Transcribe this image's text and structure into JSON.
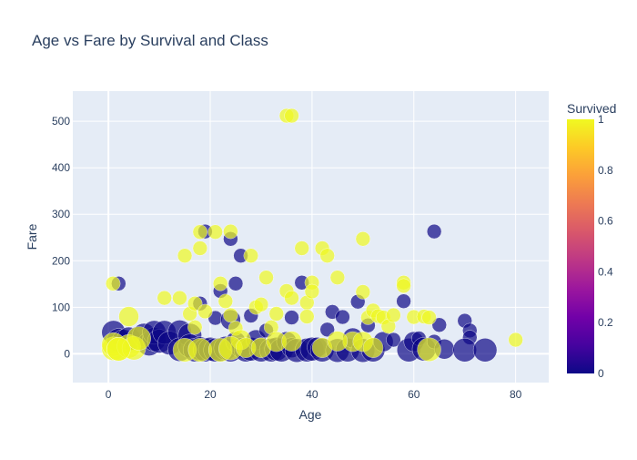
{
  "chart_data": {
    "type": "scatter",
    "title": "Age vs Fare by Survival and Class",
    "xlabel": "Age",
    "ylabel": "Fare",
    "xlim": [
      -7,
      86.5
    ],
    "ylim": [
      -62,
      565
    ],
    "x_ticks": [
      0,
      20,
      40,
      60,
      80
    ],
    "y_ticks": [
      0,
      100,
      200,
      300,
      400,
      500
    ],
    "grid": true,
    "plot_bgcolor": "#e5ecf6",
    "colorbar": {
      "title": "Survived",
      "range": [
        0,
        1
      ],
      "ticks": [
        "0",
        "0.2",
        "0.4",
        "0.6",
        "0.8",
        "1"
      ],
      "colorscale": [
        "#0d0887",
        "#46039f",
        "#7201a8",
        "#9c179e",
        "#bd3786",
        "#d8576b",
        "#ed7953",
        "#fb9f3a",
        "#fdca26",
        "#f0f921"
      ]
    },
    "marker_size_note": "marker size encodes passenger class (larger = 3rd class)",
    "series": [
      {
        "survived": 0,
        "color": "#0d0887",
        "points": [
          [
            1,
            46,
            3
          ],
          [
            2,
            29,
            3
          ],
          [
            2,
            151,
            1
          ],
          [
            3,
            27,
            3
          ],
          [
            4,
            32,
            3
          ],
          [
            6,
            34,
            3
          ],
          [
            7,
            40,
            3
          ],
          [
            8,
            21,
            3
          ],
          [
            9,
            31,
            3
          ],
          [
            9,
            46,
            3
          ],
          [
            10,
            27,
            3
          ],
          [
            11,
            46,
            3
          ],
          [
            12,
            23,
            3
          ],
          [
            14,
            47,
            3
          ],
          [
            14,
            9,
            3
          ],
          [
            16,
            40,
            3
          ],
          [
            16,
            17,
            3
          ],
          [
            17,
            8,
            3
          ],
          [
            18,
            108,
            1
          ],
          [
            18,
            11,
            3
          ],
          [
            19,
            263,
            1
          ],
          [
            19,
            8,
            3
          ],
          [
            20,
            10,
            3
          ],
          [
            21,
            77,
            1
          ],
          [
            21,
            8,
            3
          ],
          [
            22,
            135,
            1
          ],
          [
            22,
            9,
            3
          ],
          [
            23,
            12,
            3
          ],
          [
            24,
            247,
            1
          ],
          [
            24,
            8,
            3
          ],
          [
            24,
            73,
            2
          ],
          [
            25,
            151,
            1
          ],
          [
            25,
            26,
            2
          ],
          [
            26,
            211,
            1
          ],
          [
            26,
            13,
            2
          ],
          [
            27,
            8,
            3
          ],
          [
            28,
            82,
            1
          ],
          [
            28,
            10,
            3
          ],
          [
            29,
            30,
            2
          ],
          [
            30,
            8,
            3
          ],
          [
            31,
            50,
            1
          ],
          [
            32,
            8,
            3
          ],
          [
            33,
            10,
            3
          ],
          [
            34,
            8,
            3
          ],
          [
            35,
            26,
            2
          ],
          [
            36,
            13,
            2
          ],
          [
            36,
            78,
            1
          ],
          [
            37,
            7,
            3
          ],
          [
            38,
            153,
            1
          ],
          [
            39,
            8,
            3
          ],
          [
            40,
            10,
            3
          ],
          [
            41,
            14,
            2
          ],
          [
            42,
            8,
            3
          ],
          [
            43,
            52,
            1
          ],
          [
            44,
            90,
            1
          ],
          [
            45,
            7,
            3
          ],
          [
            46,
            79,
            1
          ],
          [
            47,
            8,
            3
          ],
          [
            48,
            34,
            2
          ],
          [
            49,
            112,
            1
          ],
          [
            50,
            7,
            3
          ],
          [
            51,
            61,
            1
          ],
          [
            52,
            8,
            3
          ],
          [
            54,
            26,
            2
          ],
          [
            56,
            30,
            1
          ],
          [
            58,
            113,
            1
          ],
          [
            59,
            8,
            3
          ],
          [
            60,
            26,
            2
          ],
          [
            61,
            33,
            1
          ],
          [
            62,
            10,
            3
          ],
          [
            64,
            263,
            1
          ],
          [
            64,
            26,
            1
          ],
          [
            65,
            62,
            1
          ],
          [
            66,
            10,
            2
          ],
          [
            70,
            71,
            1
          ],
          [
            71,
            50,
            1
          ],
          [
            71,
            35,
            1
          ],
          [
            70,
            8,
            3
          ],
          [
            74,
            8,
            3
          ]
        ]
      },
      {
        "survived": 1,
        "color": "#f0f921",
        "points": [
          [
            0.9,
            151,
            1
          ],
          [
            1,
            11,
            3
          ],
          [
            1,
            20,
            3
          ],
          [
            2,
            10,
            3
          ],
          [
            4,
            80,
            2
          ],
          [
            4,
            16,
            3
          ],
          [
            5,
            12,
            3
          ],
          [
            6,
            33,
            3
          ],
          [
            11,
            120,
            1
          ],
          [
            14,
            120,
            1
          ],
          [
            15,
            211,
            1
          ],
          [
            16,
            86,
            1
          ],
          [
            17,
            108,
            1
          ],
          [
            17,
            57,
            1
          ],
          [
            18,
            262,
            1
          ],
          [
            18,
            227,
            1
          ],
          [
            19,
            91,
            1
          ],
          [
            21,
            262,
            1
          ],
          [
            22,
            151,
            1
          ],
          [
            23,
            113,
            1
          ],
          [
            24,
            263,
            1
          ],
          [
            24,
            83,
            1
          ],
          [
            25,
            55,
            1
          ],
          [
            26,
            30,
            2
          ],
          [
            28,
            211,
            1
          ],
          [
            29,
            100,
            1
          ],
          [
            30,
            106,
            1
          ],
          [
            31,
            164,
            1
          ],
          [
            32,
            57,
            1
          ],
          [
            33,
            86,
            1
          ],
          [
            35,
            512,
            1
          ],
          [
            36,
            512,
            1
          ],
          [
            35,
            135,
            1
          ],
          [
            36,
            120,
            1
          ],
          [
            38,
            227,
            1
          ],
          [
            39,
            110,
            1
          ],
          [
            39,
            80,
            1
          ],
          [
            40,
            153,
            1
          ],
          [
            40,
            134,
            1
          ],
          [
            42,
            227,
            1
          ],
          [
            43,
            211,
            1
          ],
          [
            45,
            164,
            1
          ],
          [
            48,
            26,
            2
          ],
          [
            50,
            247,
            1
          ],
          [
            50,
            133,
            1
          ],
          [
            51,
            78,
            1
          ],
          [
            52,
            93,
            1
          ],
          [
            53,
            81,
            1
          ],
          [
            54,
            78,
            1
          ],
          [
            55,
            59,
            1
          ],
          [
            56,
            83,
            1
          ],
          [
            58,
            153,
            1
          ],
          [
            58,
            146,
            1
          ],
          [
            60,
            79,
            1
          ],
          [
            62,
            80,
            1
          ],
          [
            63,
            78,
            1
          ],
          [
            63,
            9,
            3
          ],
          [
            80,
            30,
            1
          ],
          [
            2,
            10,
            3
          ],
          [
            15,
            8,
            3
          ],
          [
            18,
            8,
            3
          ],
          [
            22,
            8,
            3
          ],
          [
            24,
            12,
            3
          ],
          [
            27,
            13,
            2
          ],
          [
            30,
            13,
            2
          ],
          [
            33,
            26,
            2
          ],
          [
            36,
            27,
            2
          ],
          [
            42,
            13,
            2
          ],
          [
            45,
            27,
            2
          ],
          [
            50,
            26,
            2
          ],
          [
            52,
            13,
            2
          ]
        ]
      }
    ]
  }
}
